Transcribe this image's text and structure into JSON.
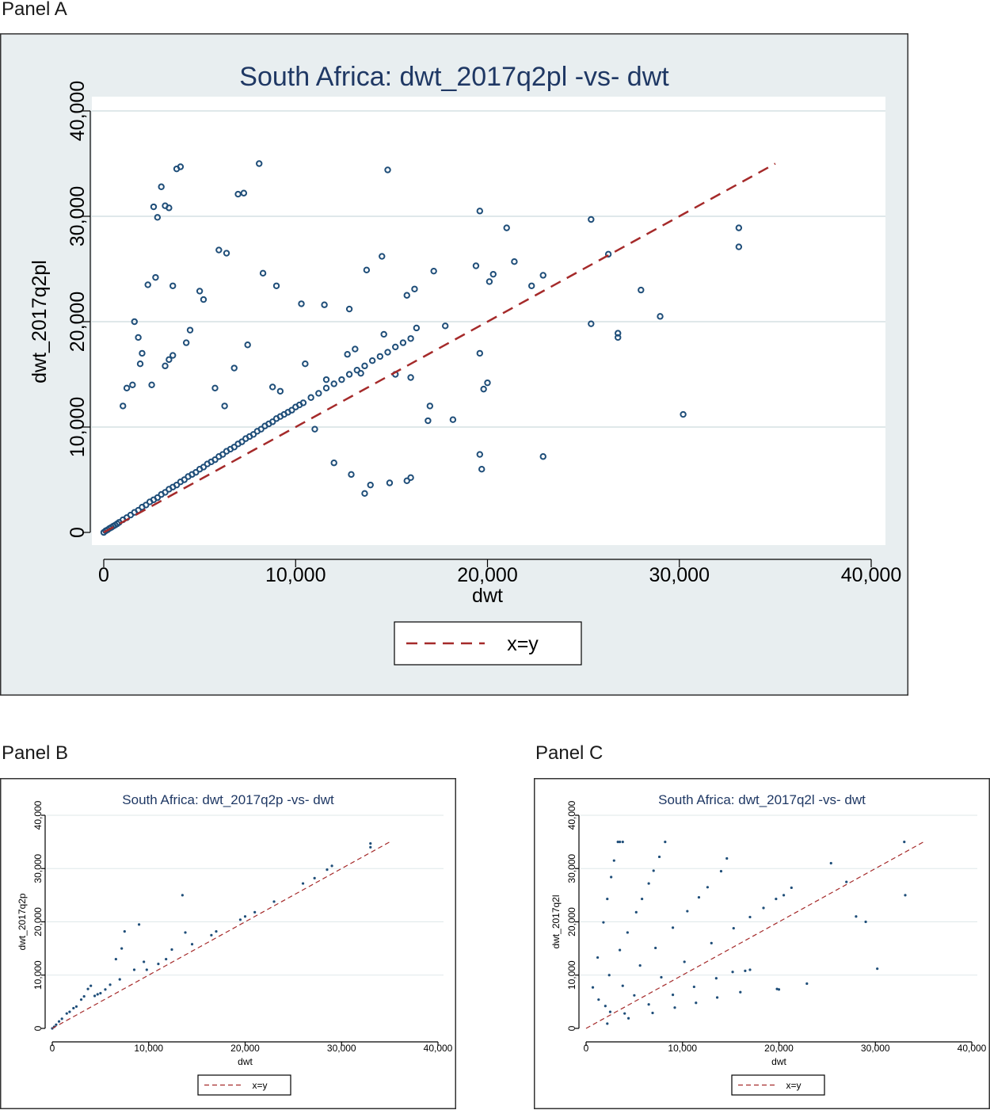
{
  "panels": [
    {
      "label": "Panel A"
    },
    {
      "label": "Panel B"
    },
    {
      "label": "Panel C"
    }
  ],
  "chart_data": [
    {
      "type": "scatter",
      "title": "South Africa: dwt_2017q2pl -vs- dwt",
      "xlabel": "dwt",
      "ylabel": "dwt_2017q2pl",
      "xlim": [
        0,
        40000
      ],
      "ylim": [
        0,
        40000
      ],
      "xticks": [
        0,
        10000,
        20000,
        30000,
        40000
      ],
      "yticks": [
        0,
        10000,
        20000,
        30000,
        40000
      ],
      "xtick_labels": [
        "0",
        "10,000",
        "20,000",
        "30,000",
        "40,000"
      ],
      "ytick_labels": [
        "0",
        "10,000",
        "20,000",
        "30,000",
        "40,000"
      ],
      "grid": true,
      "legend_position": "bottom-center",
      "colors": {
        "points": "#1f4e79",
        "line": "#a52a2a",
        "background": "#e8eef0"
      },
      "reference_line": {
        "name": "x=y",
        "x": [
          0,
          35000
        ],
        "y": [
          0,
          35000
        ]
      },
      "series": [
        {
          "type": "scatter",
          "x": [
            3000,
            3800,
            4000,
            3200,
            3400,
            2600,
            2800,
            7000,
            7300,
            8100,
            14800,
            19600,
            25400,
            33100,
            33100,
            21000,
            26300,
            6000,
            6400,
            2700,
            3600,
            2300,
            5000,
            5200,
            8300,
            9000,
            10300,
            11500,
            12800,
            13700,
            14500,
            15800,
            16200,
            17200,
            19400,
            20100,
            20300,
            21400,
            22300,
            22900,
            28000,
            29000,
            25400,
            26800,
            26800,
            30200,
            19600,
            19800,
            20000,
            19600,
            19700,
            22900,
            1600,
            1800,
            2000,
            1900,
            3200,
            3400,
            3600,
            4300,
            4500,
            6800,
            7500,
            8800,
            10500,
            11600,
            12700,
            13100,
            13400,
            14600,
            15200,
            16000,
            16300,
            17800,
            17000,
            18200,
            16900,
            13900,
            13600,
            14900,
            15800,
            16000,
            1200,
            1500,
            1000,
            2500,
            5800,
            6300,
            9200,
            11000,
            12000,
            12900
          ],
          "y": [
            32800,
            34500,
            34700,
            31000,
            30800,
            30900,
            29900,
            32100,
            32200,
            35000,
            34400,
            30500,
            29700,
            28900,
            27100,
            28900,
            26400,
            26800,
            26500,
            24200,
            23400,
            23500,
            22900,
            22100,
            24600,
            23400,
            21700,
            21600,
            21200,
            24900,
            26200,
            22500,
            23100,
            24800,
            25300,
            23800,
            24500,
            25700,
            23400,
            24400,
            23000,
            20500,
            19800,
            18900,
            18500,
            11200,
            17000,
            13600,
            14200,
            7400,
            6000,
            7200,
            20000,
            18500,
            17000,
            16000,
            15800,
            16400,
            16800,
            18000,
            19200,
            15600,
            17800,
            13800,
            16000,
            14500,
            16900,
            17400,
            15100,
            18800,
            15000,
            14700,
            19400,
            19600,
            12000,
            10700,
            10600,
            4500,
            3700,
            4700,
            4900,
            5200,
            13700,
            14000,
            12000,
            14000,
            13700,
            12000,
            13400,
            9800,
            6600,
            5500
          ]
        },
        {
          "type": "scatter",
          "x": [
            0,
            100,
            200,
            300,
            400,
            500,
            600,
            700,
            800,
            1000,
            1200,
            1400,
            1600,
            1800,
            2000,
            2200,
            2400,
            2600,
            2800,
            3000,
            3200,
            3400,
            3600,
            3800,
            4000,
            4200,
            4400,
            4600,
            4800,
            5000,
            5200,
            5400,
            5600,
            5800,
            6000,
            6200,
            6400,
            6600,
            6800,
            7000,
            7200,
            7400,
            7600,
            7800,
            8000,
            8200,
            8400,
            8600,
            8800,
            9000,
            9200,
            9400,
            9600,
            9800,
            10000,
            10200,
            10400,
            10800,
            11200,
            11600,
            12000,
            12400,
            12800,
            13200,
            13600,
            14000,
            14400,
            14800,
            15200,
            15600,
            16000
          ],
          "y": [
            0,
            150,
            250,
            380,
            480,
            600,
            700,
            820,
            950,
            1200,
            1400,
            1650,
            1900,
            2100,
            2400,
            2600,
            2900,
            3100,
            3300,
            3600,
            3800,
            4100,
            4300,
            4500,
            4800,
            5000,
            5300,
            5500,
            5700,
            6000,
            6200,
            6500,
            6700,
            6900,
            7200,
            7400,
            7700,
            7900,
            8100,
            8400,
            8600,
            8900,
            9100,
            9300,
            9600,
            9800,
            10100,
            10300,
            10500,
            10800,
            11000,
            11200,
            11400,
            11600,
            11900,
            12100,
            12300,
            12800,
            13200,
            13700,
            14100,
            14500,
            15000,
            15400,
            15800,
            16300,
            16700,
            17100,
            17600,
            18000,
            18400
          ]
        }
      ]
    },
    {
      "type": "scatter",
      "title": "South Africa: dwt_2017q2p -vs- dwt",
      "xlabel": "dwt",
      "ylabel": "dwt_2017q2p",
      "xlim": [
        0,
        40000
      ],
      "ylim": [
        0,
        40000
      ],
      "xticks": [
        0,
        10000,
        20000,
        30000,
        40000
      ],
      "yticks": [
        0,
        10000,
        20000,
        30000,
        40000
      ],
      "xtick_labels": [
        "0",
        "10,000",
        "20,000",
        "30,000",
        "40,000"
      ],
      "ytick_labels": [
        "0",
        "10,000",
        "20,000",
        "30,000",
        "40,000"
      ],
      "grid": true,
      "legend_position": "bottom-center",
      "colors": {
        "points": "#1f4e79",
        "line": "#a52a2a",
        "background": "#ffffff"
      },
      "reference_line": {
        "name": "x=y",
        "x": [
          0,
          35000
        ],
        "y": [
          0,
          35000
        ]
      },
      "series": [
        {
          "type": "scatter",
          "x": [
            33000,
            33000,
            29000,
            28500,
            27200,
            26000,
            23000,
            21000,
            20000,
            19500,
            17000,
            16500,
            14500,
            13800,
            13500,
            12400,
            11800,
            11000,
            9800,
            9500,
            9000,
            8500,
            7500,
            7200,
            7000,
            6600,
            6000,
            5500,
            5000,
            4700,
            4400,
            4000,
            3700,
            3300,
            3000,
            2500,
            2200,
            1800,
            1500,
            1000,
            700,
            400,
            200,
            0
          ],
          "y": [
            34700,
            34000,
            30500,
            29800,
            28200,
            27200,
            23800,
            21800,
            21000,
            20400,
            18200,
            17500,
            15800,
            18000,
            25000,
            14800,
            13000,
            12100,
            11000,
            12500,
            19500,
            11000,
            18200,
            15000,
            9200,
            13000,
            8200,
            7300,
            6600,
            6400,
            6100,
            8000,
            7400,
            6000,
            5400,
            4100,
            3800,
            3100,
            2800,
            1800,
            1300,
            700,
            300,
            0
          ]
        }
      ]
    },
    {
      "type": "scatter",
      "title": "South Africa: dwt_2017q2l -vs- dwt",
      "xlabel": "dwt",
      "ylabel": "dwt_2017q2l",
      "xlim": [
        0,
        40000
      ],
      "ylim": [
        0,
        40000
      ],
      "xticks": [
        0,
        10000,
        20000,
        30000,
        40000
      ],
      "yticks": [
        0,
        10000,
        20000,
        30000,
        40000
      ],
      "xtick_labels": [
        "0",
        "10,000",
        "20,000",
        "30,000",
        "40,000"
      ],
      "ytick_labels": [
        "0",
        "10,000",
        "20,000",
        "30,000",
        "40,000"
      ],
      "grid": true,
      "legend_position": "bottom-center",
      "colors": {
        "points": "#1f4e79",
        "line": "#a52a2a",
        "background": "#ffffff"
      },
      "reference_line": {
        "name": "x=y",
        "x": [
          0,
          35000
        ],
        "y": [
          0,
          35000
        ]
      },
      "series": [
        {
          "type": "scatter",
          "x": [
            3300,
            3500,
            3800,
            2900,
            2600,
            2200,
            1800,
            1200,
            700,
            8200,
            7600,
            7000,
            6500,
            5800,
            5200,
            4300,
            3500,
            2400,
            1300,
            14600,
            14000,
            12600,
            11700,
            10500,
            9000,
            7200,
            5600,
            3800,
            2000,
            20500,
            21300,
            19700,
            18400,
            17000,
            15300,
            13000,
            10200,
            7800,
            5000,
            2500,
            15200,
            13500,
            11200,
            9000,
            6500,
            4000,
            16000,
            13600,
            11400,
            9200,
            6900,
            4400,
            2200,
            33000,
            33100,
            25400,
            27000,
            29000,
            28000,
            30200,
            19800,
            20000,
            22900,
            17000,
            16500
          ],
          "y": [
            35000,
            35000,
            35000,
            31500,
            28400,
            24300,
            19900,
            13300,
            7700,
            35000,
            32200,
            29600,
            27200,
            24300,
            21800,
            18000,
            14700,
            10000,
            5400,
            31900,
            29500,
            26500,
            24600,
            22000,
            18900,
            15100,
            11800,
            8000,
            4200,
            25000,
            26400,
            24300,
            22600,
            20900,
            18800,
            16000,
            12500,
            9600,
            6200,
            3100,
            10600,
            9400,
            7800,
            6300,
            4500,
            2800,
            6800,
            5800,
            4800,
            3900,
            2900,
            1900,
            900,
            35000,
            25000,
            31000,
            27500,
            20000,
            21000,
            11200,
            7400,
            7300,
            8400,
            11000,
            10800
          ]
        }
      ]
    }
  ]
}
